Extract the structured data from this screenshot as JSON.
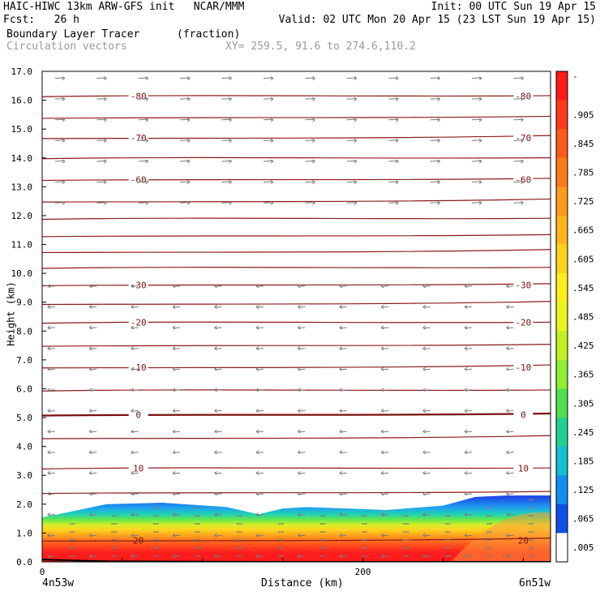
{
  "header": {
    "line1_left": "HAIC-HIWC 13km ARW-GFS init   NCAR/MMM",
    "line1_right": "Init: 00 UTC Sun 19 Apr 15",
    "line2_left": "Fcst:   26 h",
    "line2_right": "Valid: 02 UTC Mon 20 Apr 15 (23 LST Sun 19 Apr 15)",
    "line3_left": "Boundary Layer Tracer",
    "line3_units": "(fraction)",
    "line4_left": "Circulation vectors",
    "line4_xy": "XY= 259.5, 91.6 to 274.6,110.2"
  },
  "chart_data": {
    "type": "heatmap",
    "field": "Boundary Layer Tracer",
    "units": "fraction",
    "overlay_field": "Circulation vectors",
    "xlabel": "Distance (km)",
    "ylabel": "Height (km)",
    "xlim": [
      0,
      317
    ],
    "ylim": [
      0,
      17
    ],
    "x_ticks": [
      {
        "value": 0,
        "label": "0"
      },
      {
        "value": 200,
        "label": "200"
      }
    ],
    "x_end_labels": {
      "left": "4n53w",
      "right": "6n51w"
    },
    "y_ticks": [
      "0.0",
      "1.0",
      "2.0",
      "3.0",
      "4.0",
      "5.0",
      "6.0",
      "7.0",
      "8.0",
      "9.0",
      "10.0",
      "11.0",
      "12.0",
      "13.0",
      "14.0",
      "15.0",
      "16.0",
      "17.0"
    ],
    "colorbar_labels": [
      "-",
      ".905",
      ".845",
      ".785",
      ".725",
      ".665",
      ".605",
      ".545",
      ".485",
      ".425",
      ".365",
      ".305",
      ".245",
      ".185",
      ".125",
      ".065",
      ".005"
    ],
    "colorbar_colors": [
      "#ff1a1a",
      "#ff3a1a",
      "#ff5a1a",
      "#ff7a1a",
      "#ff9a1a",
      "#ffb61a",
      "#ffd21a",
      "#ffee1a",
      "#e6f51a",
      "#c0f020",
      "#90ee30",
      "#50e050",
      "#20d090",
      "#10c0d0",
      "#1090f0",
      "#1050e8",
      "#ffffff"
    ],
    "tracer_top_x_km": [
      0,
      10,
      40,
      75,
      115,
      135,
      150,
      165,
      190,
      215,
      250,
      270,
      290,
      317
    ],
    "tracer_top_km": [
      1.55,
      1.65,
      2.0,
      2.05,
      1.9,
      1.65,
      1.85,
      1.9,
      1.85,
      1.8,
      1.95,
      2.25,
      2.3,
      2.3
    ],
    "temperature_contours_degC": [
      {
        "value": -80,
        "label": "-80",
        "height_km": 16.15
      },
      {
        "value": -75,
        "label": "",
        "height_km": 15.4
      },
      {
        "value": -70,
        "label": "-70",
        "height_km": 14.7
      },
      {
        "value": -65,
        "label": "",
        "height_km": 14.0
      },
      {
        "value": -60,
        "label": "-60",
        "height_km": 13.25
      },
      {
        "value": -55,
        "label": "",
        "height_km": 12.5
      },
      {
        "value": -50,
        "label": "",
        "height_km": 11.9
      },
      {
        "value": -45,
        "label": "",
        "height_km": 11.3
      },
      {
        "value": -40,
        "label": "",
        "height_km": 10.75
      },
      {
        "value": -35,
        "label": "",
        "height_km": 10.2
      },
      {
        "value": -30,
        "label": "-30",
        "height_km": 9.6
      },
      {
        "value": -25,
        "label": "",
        "height_km": 8.95
      },
      {
        "value": -20,
        "label": "-20",
        "height_km": 8.3
      },
      {
        "value": -15,
        "label": "",
        "height_km": 7.5
      },
      {
        "value": -10,
        "label": "-10",
        "height_km": 6.75
      },
      {
        "value": -5,
        "label": "",
        "height_km": 5.95
      },
      {
        "value": 0,
        "label": "0",
        "height_km": 5.1
      },
      {
        "value": 5,
        "label": "",
        "height_km": 4.3
      },
      {
        "value": 10,
        "label": "10",
        "height_km": 3.25
      },
      {
        "value": 15,
        "label": "",
        "height_km": 2.4
      },
      {
        "value": 20,
        "label": "20",
        "height_km": 0.75
      }
    ]
  }
}
